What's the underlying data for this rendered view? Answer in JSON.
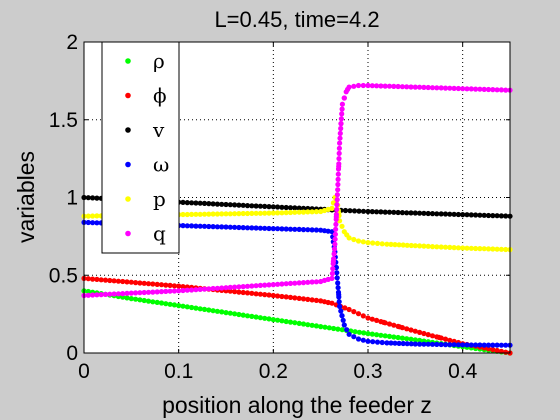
{
  "chart_data": {
    "type": "scatter",
    "title": "L=0.45, time=4.2",
    "xlabel": "position along the feeder z",
    "ylabel": "variables",
    "xlim": [
      0,
      0.45
    ],
    "ylim": [
      0,
      2
    ],
    "xticks": [
      "0",
      "0.1",
      "0.2",
      "0.3",
      "0.4"
    ],
    "xtick_values": [
      0,
      0.1,
      0.2,
      0.3,
      0.4
    ],
    "yticks": [
      "0",
      "0.5",
      "1",
      "1.5",
      "2"
    ],
    "ytick_values": [
      0,
      0.5,
      1,
      1.5,
      2
    ],
    "grid": true,
    "legend_position": "top-left",
    "series": [
      {
        "name": "ρ",
        "color": "#00ff00",
        "x": [
          0,
          0.05,
          0.1,
          0.15,
          0.2,
          0.25,
          0.3,
          0.35,
          0.4,
          0.45
        ],
        "y": [
          0.4,
          0.35,
          0.305,
          0.26,
          0.215,
          0.17,
          0.125,
          0.085,
          0.04,
          0.0
        ]
      },
      {
        "name": "ϕ",
        "color": "#ff0000",
        "x": [
          0,
          0.05,
          0.1,
          0.15,
          0.2,
          0.25,
          0.262,
          0.28,
          0.3,
          0.35,
          0.4,
          0.45
        ],
        "y": [
          0.48,
          0.455,
          0.43,
          0.4,
          0.37,
          0.335,
          0.32,
          0.28,
          0.225,
          0.14,
          0.06,
          0.0
        ]
      },
      {
        "name": "v",
        "color": "#000000",
        "x": [
          0,
          0.05,
          0.1,
          0.15,
          0.2,
          0.25,
          0.262,
          0.3,
          0.35,
          0.4,
          0.45
        ],
        "y": [
          1.0,
          0.985,
          0.97,
          0.955,
          0.94,
          0.925,
          0.92,
          0.91,
          0.9,
          0.89,
          0.88
        ]
      },
      {
        "name": "ω",
        "color": "#0000ff",
        "x": [
          0,
          0.05,
          0.1,
          0.15,
          0.2,
          0.25,
          0.262,
          0.265,
          0.268,
          0.27,
          0.275,
          0.28,
          0.29,
          0.3,
          0.32,
          0.35,
          0.4,
          0.45
        ],
        "y": [
          0.84,
          0.83,
          0.82,
          0.81,
          0.8,
          0.79,
          0.78,
          0.65,
          0.45,
          0.3,
          0.18,
          0.12,
          0.09,
          0.075,
          0.065,
          0.058,
          0.052,
          0.05
        ]
      },
      {
        "name": "p",
        "color": "#ffff00",
        "x": [
          0,
          0.05,
          0.1,
          0.15,
          0.2,
          0.25,
          0.262,
          0.265,
          0.268,
          0.27,
          0.275,
          0.28,
          0.29,
          0.3,
          0.32,
          0.35,
          0.4,
          0.45
        ],
        "y": [
          0.88,
          0.885,
          0.89,
          0.895,
          0.9,
          0.91,
          0.93,
          1.0,
          0.95,
          0.85,
          0.78,
          0.74,
          0.72,
          0.71,
          0.7,
          0.69,
          0.675,
          0.665
        ]
      },
      {
        "name": "q",
        "color": "#ff00ff",
        "x": [
          0,
          0.05,
          0.1,
          0.15,
          0.2,
          0.25,
          0.262,
          0.265,
          0.268,
          0.27,
          0.273,
          0.277,
          0.28,
          0.29,
          0.3,
          0.35,
          0.4,
          0.45
        ],
        "y": [
          0.37,
          0.385,
          0.4,
          0.42,
          0.44,
          0.46,
          0.48,
          0.7,
          1.05,
          1.35,
          1.6,
          1.68,
          1.71,
          1.72,
          1.72,
          1.71,
          1.7,
          1.69
        ]
      }
    ]
  }
}
